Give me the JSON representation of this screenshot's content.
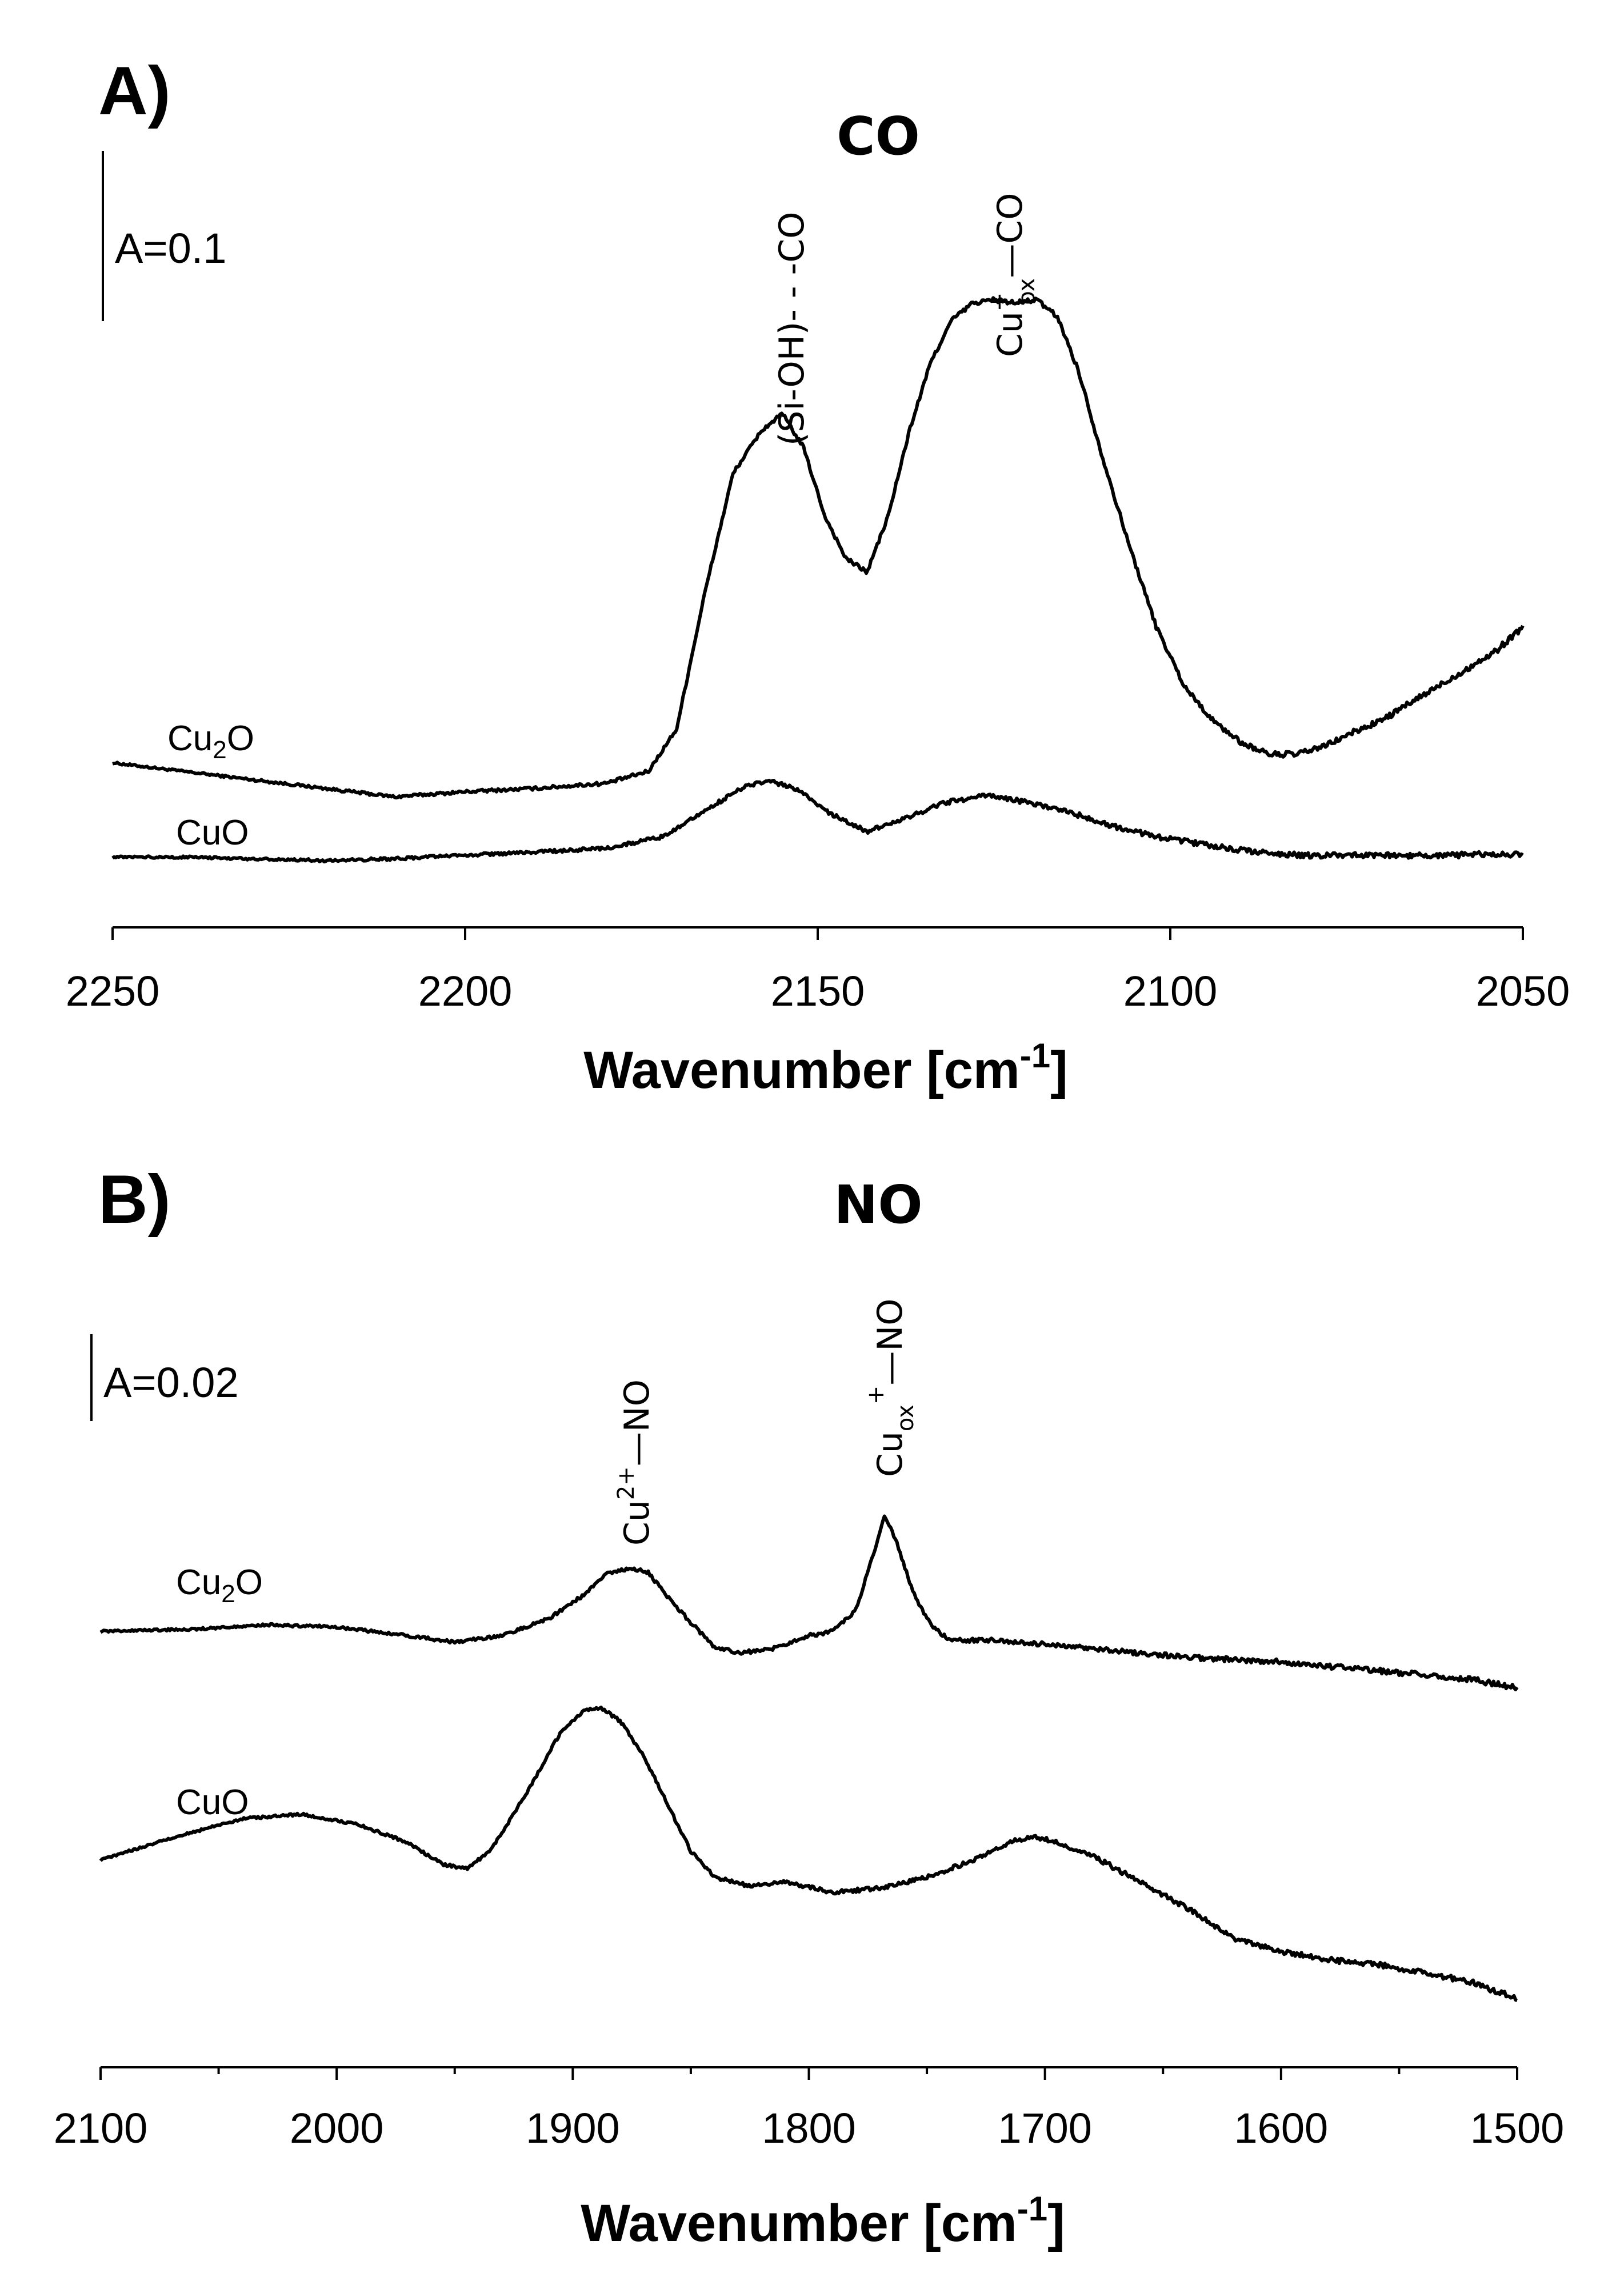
{
  "colors": {
    "line": "#000000",
    "background": "#ffffff"
  },
  "chart_data": [
    {
      "type": "line",
      "panel_label": "A)",
      "title": "CO",
      "xlabel": "Wavenumber [cm",
      "xlabel_sup": "-1",
      "xlabel_end": "]",
      "xlim": [
        2250,
        2050
      ],
      "x_reversed": true,
      "xticks": [
        2250,
        2200,
        2150,
        2100,
        2050
      ],
      "scale_bar_label": "A=0.1",
      "scale_bar_value": 0.1,
      "series": [
        {
          "name": "Cu",
          "name_sub": "2",
          "name_end": "O",
          "x": [
            2250,
            2240,
            2230,
            2220,
            2210,
            2200,
            2190,
            2180,
            2174,
            2170,
            2166,
            2162,
            2158,
            2155,
            2152,
            2149,
            2146,
            2143,
            2140,
            2137,
            2134,
            2131,
            2128,
            2125,
            2122,
            2119,
            2116,
            2113,
            2110,
            2106,
            2102,
            2098,
            2094,
            2090,
            2086,
            2082,
            2078,
            2074,
            2070,
            2066,
            2062,
            2058,
            2054,
            2050
          ],
          "values": [
            0.0,
            -0.005,
            -0.01,
            -0.015,
            -0.02,
            -0.017,
            -0.015,
            -0.012,
            -0.005,
            0.02,
            0.1,
            0.17,
            0.195,
            0.205,
            0.185,
            0.145,
            0.12,
            0.112,
            0.145,
            0.195,
            0.235,
            0.26,
            0.27,
            0.272,
            0.27,
            0.272,
            0.262,
            0.23,
            0.185,
            0.13,
            0.08,
            0.045,
            0.025,
            0.012,
            0.005,
            0.005,
            0.01,
            0.018,
            0.025,
            0.035,
            0.045,
            0.055,
            0.065,
            0.08
          ]
        },
        {
          "name": "CuO",
          "x": [
            2250,
            2240,
            2230,
            2220,
            2210,
            2200,
            2190,
            2180,
            2172,
            2165,
            2160,
            2157,
            2153,
            2148,
            2143,
            2138,
            2132,
            2126,
            2120,
            2114,
            2108,
            2102,
            2096,
            2090,
            2085,
            2080,
            2070,
            2060,
            2050
          ],
          "values": [
            0.0,
            0.0,
            -0.001,
            -0.002,
            -0.001,
            0.001,
            0.003,
            0.005,
            0.012,
            0.03,
            0.042,
            0.045,
            0.04,
            0.025,
            0.015,
            0.022,
            0.032,
            0.036,
            0.032,
            0.026,
            0.018,
            0.012,
            0.008,
            0.004,
            0.002,
            0.001,
            0.001,
            0.001,
            0.002
          ]
        }
      ],
      "annotations": [
        {
          "text": "(Si-OH)- - -CO",
          "x": 2154
        },
        {
          "text": "Cu",
          "sup": "+",
          "sub": "ox",
          "end": "—CO",
          "x": 2120
        }
      ]
    },
    {
      "type": "line",
      "panel_label": "B)",
      "title": "NO",
      "xlabel": "Wavenumber [cm",
      "xlabel_sup": "-1",
      "xlabel_end": "]",
      "xlim": [
        2100,
        1500
      ],
      "x_reversed": true,
      "xticks": [
        2100,
        2000,
        1900,
        1800,
        1700,
        1600,
        1500
      ],
      "scale_bar_label": "A=0.02",
      "scale_bar_value": 0.02,
      "series": [
        {
          "name": "Cu",
          "name_sub": "2",
          "name_end": "O",
          "x": [
            2100,
            2060,
            2030,
            2000,
            1970,
            1950,
            1930,
            1910,
            1895,
            1885,
            1875,
            1868,
            1860,
            1850,
            1840,
            1830,
            1815,
            1800,
            1790,
            1780,
            1773,
            1768,
            1763,
            1756,
            1748,
            1740,
            1720,
            1700,
            1680,
            1660,
            1640,
            1620,
            1600,
            1580,
            1560,
            1540,
            1520,
            1500
          ],
          "values": [
            0.0,
            0.0005,
            0.0015,
            0.001,
            -0.001,
            -0.0025,
            -0.001,
            0.003,
            0.0085,
            0.0135,
            0.0145,
            0.0135,
            0.008,
            0.002,
            -0.0035,
            -0.005,
            -0.004,
            -0.001,
            0.0,
            0.005,
            0.017,
            0.0265,
            0.021,
            0.009,
            0.001,
            -0.002,
            -0.002,
            -0.003,
            -0.004,
            -0.005,
            -0.006,
            -0.0065,
            -0.007,
            -0.008,
            -0.009,
            -0.01,
            -0.011,
            -0.013
          ]
        },
        {
          "name": "CuO",
          "x": [
            2100,
            2070,
            2040,
            2015,
            1990,
            1970,
            1955,
            1945,
            1935,
            1920,
            1905,
            1895,
            1888,
            1880,
            1870,
            1860,
            1850,
            1840,
            1825,
            1810,
            1790,
            1770,
            1750,
            1730,
            1715,
            1705,
            1695,
            1680,
            1660,
            1640,
            1620,
            1600,
            1580,
            1560,
            1540,
            1520,
            1500
          ],
          "values": [
            0.0,
            0.005,
            0.0095,
            0.0105,
            0.008,
            0.004,
            -0.001,
            -0.002,
            0.002,
            0.015,
            0.0295,
            0.0345,
            0.035,
            0.032,
            0.024,
            0.013,
            0.002,
            -0.004,
            -0.006,
            -0.005,
            -0.0075,
            -0.0065,
            -0.004,
            0.0,
            0.004,
            0.0055,
            0.004,
            0.001,
            -0.005,
            -0.011,
            -0.018,
            -0.021,
            -0.023,
            -0.024,
            -0.026,
            -0.028,
            -0.032
          ]
        }
      ],
      "annotations": [
        {
          "text": "Cu",
          "sup": "2+",
          "end": "—NO",
          "x": 1872
        },
        {
          "text": "Cu",
          "sub": "ox",
          "sup": "+",
          "end": "—NO",
          "x": 1768
        }
      ]
    }
  ]
}
